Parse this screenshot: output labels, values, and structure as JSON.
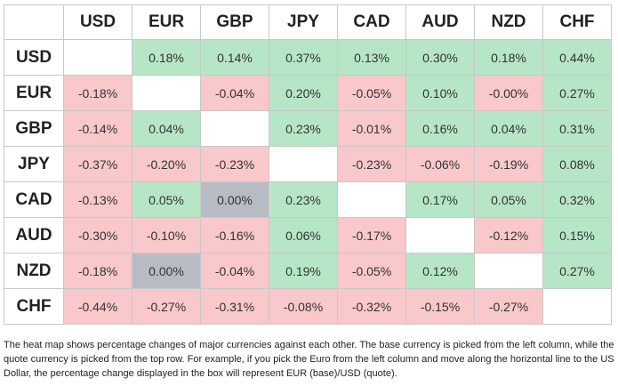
{
  "table": {
    "columns": [
      "USD",
      "EUR",
      "GBP",
      "JPY",
      "CAD",
      "AUD",
      "NZD",
      "CHF"
    ],
    "rows": [
      {
        "label": "USD",
        "cells": [
          null,
          "0.18%",
          "0.14%",
          "0.37%",
          "0.13%",
          "0.30%",
          "0.18%",
          "0.44%"
        ]
      },
      {
        "label": "EUR",
        "cells": [
          "-0.18%",
          null,
          "-0.04%",
          "0.20%",
          "-0.05%",
          "0.10%",
          "-0.00%",
          "0.27%"
        ]
      },
      {
        "label": "GBP",
        "cells": [
          "-0.14%",
          "0.04%",
          null,
          "0.23%",
          "-0.01%",
          "0.16%",
          "0.04%",
          "0.31%"
        ]
      },
      {
        "label": "JPY",
        "cells": [
          "-0.37%",
          "-0.20%",
          "-0.23%",
          null,
          "-0.23%",
          "-0.06%",
          "-0.19%",
          "0.08%"
        ]
      },
      {
        "label": "CAD",
        "cells": [
          "-0.13%",
          "0.05%",
          "0.00%",
          "0.23%",
          null,
          "0.17%",
          "0.05%",
          "0.32%"
        ]
      },
      {
        "label": "AUD",
        "cells": [
          "-0.30%",
          "-0.10%",
          "-0.16%",
          "0.06%",
          "-0.17%",
          null,
          "-0.12%",
          "0.15%"
        ]
      },
      {
        "label": "NZD",
        "cells": [
          "-0.18%",
          "0.00%",
          "-0.04%",
          "0.19%",
          "-0.05%",
          "0.12%",
          null,
          "0.27%"
        ]
      },
      {
        "label": "CHF",
        "cells": [
          "-0.44%",
          "-0.27%",
          "-0.31%",
          "-0.08%",
          "-0.32%",
          "-0.15%",
          "-0.27%",
          null
        ]
      }
    ],
    "palette": {
      "positive": "#b6e6c6",
      "negative": "#f8c8cb",
      "zero": "#b7bcc4",
      "empty": "#ffffff"
    }
  },
  "note": "The heat map shows percentage changes of major currencies against each other. The base currency is picked from the left column, while the quote currency is picked from the top row. For example, if you pick the Euro from the left column and move along the horizontal line to the US Dollar, the percentage change displayed in the box will represent EUR (base)/USD (quote)."
}
